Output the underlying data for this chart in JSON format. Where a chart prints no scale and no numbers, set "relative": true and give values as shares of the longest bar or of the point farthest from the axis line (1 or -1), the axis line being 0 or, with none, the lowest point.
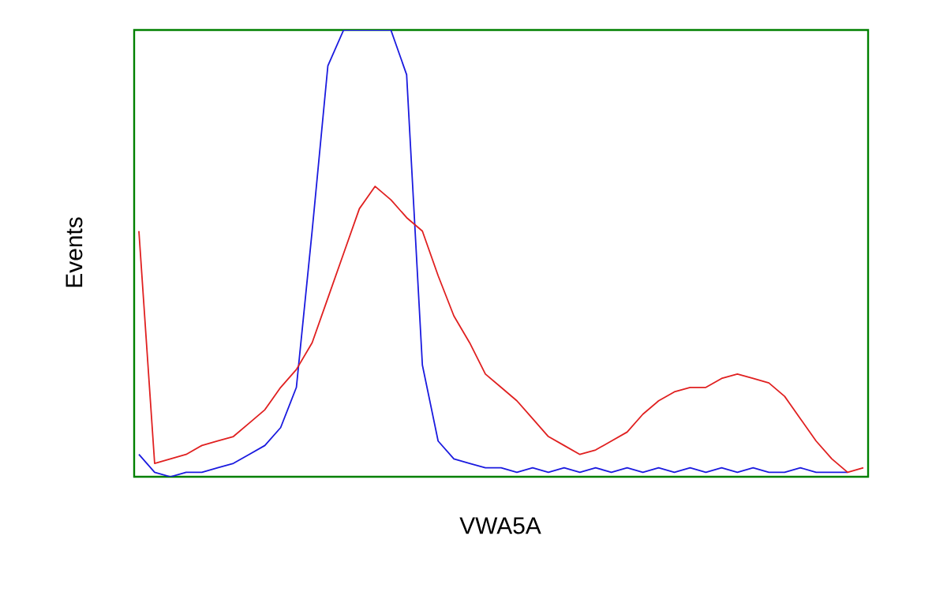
{
  "chart_data": {
    "type": "line",
    "relative": true,
    "xlabel": "VWA5A",
    "ylabel": "Events",
    "marker": "none",
    "line_style": "solid",
    "categories": [
      null,
      null,
      null,
      null,
      null,
      null,
      null,
      null,
      null,
      null,
      null,
      null,
      null,
      null,
      null,
      null,
      null,
      null,
      null,
      null,
      null,
      null,
      null,
      null,
      null,
      null,
      null,
      null,
      null,
      null,
      null,
      null,
      null,
      null,
      null,
      null,
      null,
      null,
      null,
      null,
      null,
      null,
      null,
      null,
      null,
      null,
      null
    ],
    "series": [
      {
        "color": "#1a1adf",
        "values": [
          0.05,
          0.01,
          0.0,
          0.01,
          0.01,
          0.02,
          0.03,
          0.05,
          0.07,
          0.11,
          0.2,
          0.55,
          0.92,
          1,
          1,
          1,
          1,
          0.9,
          0.25,
          0.08,
          0.04,
          0.03,
          0.02,
          0.02,
          0.01,
          0.02,
          0.01,
          0.02,
          0.01,
          0.02,
          0.01,
          0.02,
          0.01,
          0.02,
          0.01,
          0.02,
          0.01,
          0.02,
          0.01,
          0.02,
          0.01,
          0.01,
          0.02,
          0.01,
          0.01,
          0.01,
          null
        ]
      },
      {
        "color": "#e02020",
        "values": [
          0.55,
          0.03,
          0.04,
          0.05,
          0.07,
          0.08,
          0.09,
          0.12,
          0.15,
          0.2,
          0.24,
          0.3,
          0.4,
          0.5,
          0.6,
          0.65,
          0.62,
          0.58,
          0.55,
          0.45,
          0.36,
          0.3,
          0.23,
          0.2,
          0.17,
          0.13,
          0.09,
          0.07,
          0.05,
          0.06,
          0.08,
          0.1,
          0.14,
          0.17,
          0.19,
          0.2,
          0.2,
          0.22,
          0.23,
          0.22,
          0.21,
          0.18,
          0.13,
          0.08,
          0.04,
          0.01,
          0.02
        ]
      }
    ]
  }
}
